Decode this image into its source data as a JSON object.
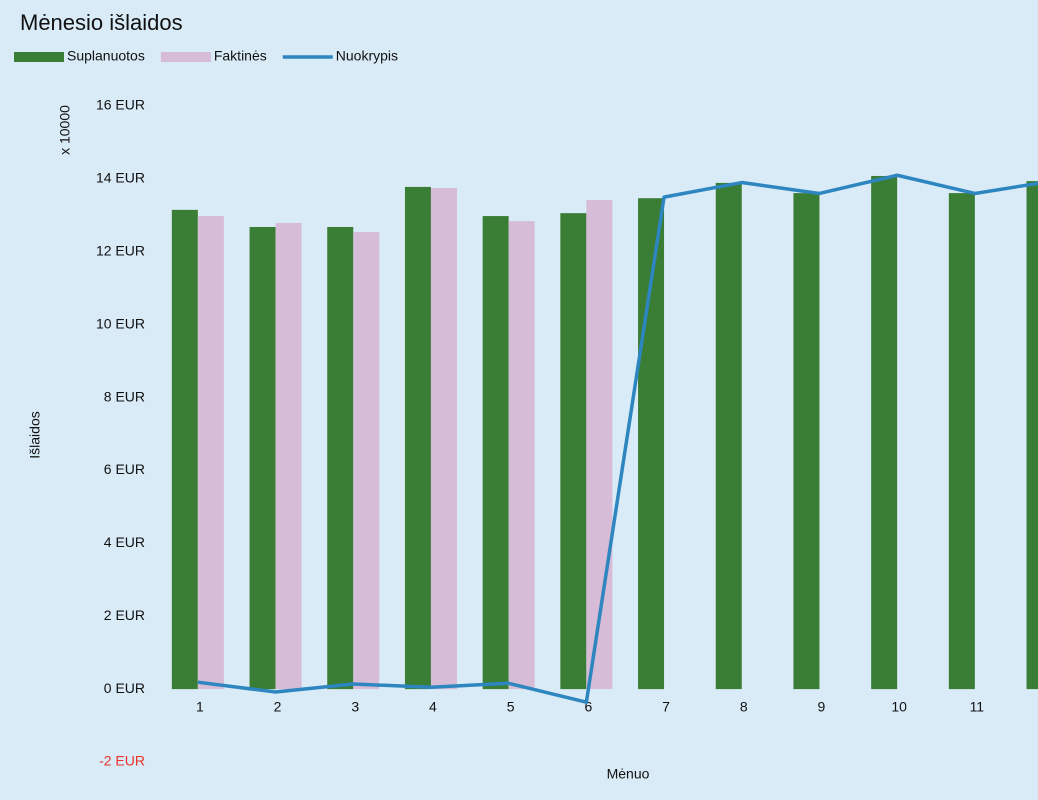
{
  "chart_data": {
    "type": "combo",
    "title": "Mėnesio išlaidos",
    "y_label": "Išlaidos",
    "x_label": "Mėnuo",
    "y_multiplier": "x 10000",
    "categories": [
      "1",
      "2",
      "3",
      "4",
      "5",
      "6",
      "7",
      "8",
      "9",
      "10",
      "11",
      null
    ],
    "series": [
      {
        "name": "Suplanuotos",
        "kind": "bar",
        "color": "#3a7d35",
        "values": [
          13.15,
          12.68,
          12.68,
          13.78,
          12.98,
          13.06,
          13.47,
          13.89,
          13.61,
          14.08,
          13.61,
          13.94
        ]
      },
      {
        "name": "Faktinės",
        "kind": "bar",
        "color": "#d6bcd6",
        "values": [
          12.98,
          12.79,
          12.54,
          13.75,
          12.84,
          13.42,
          null,
          null,
          null,
          null,
          null,
          null
        ]
      },
      {
        "name": "Nuokrypis",
        "kind": "line",
        "color": "#2e86c1",
        "values": [
          0.19,
          -0.08,
          0.14,
          0.05,
          0.16,
          -0.36,
          13.5,
          13.9,
          13.6,
          14.1,
          13.6,
          13.94
        ]
      }
    ],
    "ylim": [
      -2,
      16
    ],
    "yticks": [
      {
        "value": -2,
        "label": "-2 EUR"
      },
      {
        "value": 0,
        "label": "0 EUR"
      },
      {
        "value": 2,
        "label": "2 EUR"
      },
      {
        "value": 4,
        "label": "4 EUR"
      },
      {
        "value": 6,
        "label": "6 EUR"
      },
      {
        "value": 8,
        "label": "8 EUR"
      },
      {
        "value": 10,
        "label": "10 EUR"
      },
      {
        "value": 12,
        "label": "12 EUR"
      },
      {
        "value": 14,
        "label": "14 EUR"
      },
      {
        "value": 16,
        "label": "16 EUR"
      }
    ],
    "negative_tick_color": "#e8322b",
    "grid": false
  }
}
